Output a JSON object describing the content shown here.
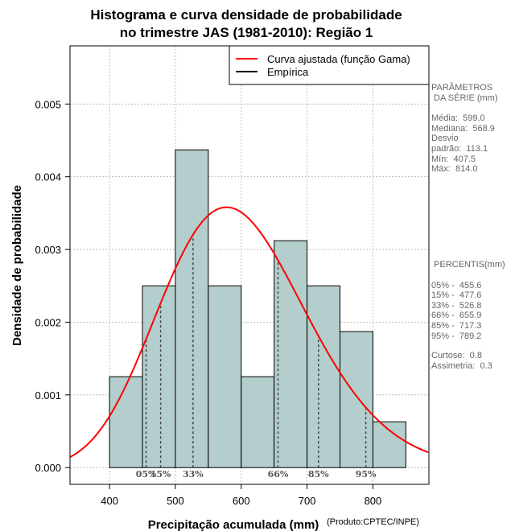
{
  "chart_data": {
    "type": "bar",
    "title": [
      "Histograma e curva densidade de probabilidade",
      "no trimestre JAS (1981-2010): Região 1"
    ],
    "xlabel": "Precipitação acumulada (mm)",
    "ylabel": "Densidade de probabilidade",
    "credit": "(Produto:CPTEC/INPE)",
    "xlim": [
      340,
      885
    ],
    "ylim": [
      -0.00023,
      0.0058
    ],
    "xticks": [
      400,
      500,
      600,
      700,
      800
    ],
    "xtick_labels": [
      "400",
      "500",
      "600",
      "700",
      "800"
    ],
    "yticks": [
      0,
      0.001,
      0.002,
      0.003,
      0.004,
      0.005
    ],
    "ytick_labels": [
      "0.000",
      "0.001",
      "0.002",
      "0.003",
      "0.004",
      "0.005"
    ],
    "grid": true,
    "bin_edges": [
      400,
      450,
      500,
      550,
      600,
      650,
      700,
      750,
      800,
      850
    ],
    "values": [
      0.00125,
      0.0025,
      0.00437,
      0.0025,
      0.00125,
      0.00312,
      0.0025,
      0.00187,
      0.00063
    ],
    "bar_color": "#b4cdcd",
    "curve": {
      "name": "Curva ajustada (função Gama)",
      "color": "#ff0000",
      "distribution": "gamma",
      "mean": 599.0,
      "sd": 113.1
    },
    "empirical": {
      "name": "Empírica",
      "color": "#000000"
    },
    "legend_position": "top-right",
    "percentiles": [
      {
        "label": "05%",
        "value": 455.6
      },
      {
        "label": "15%",
        "value": 477.6
      },
      {
        "label": "33%",
        "value": 526.8
      },
      {
        "label": "66%",
        "value": 655.9
      },
      {
        "label": "85%",
        "value": 717.3
      },
      {
        "label": "95%",
        "value": 789.2
      }
    ]
  },
  "side_panel": {
    "params_title": [
      "PARÂMETROS",
      " DA SÉRIE (mm)"
    ],
    "params": [
      "Média:  599.0",
      "Mediana:  568.9",
      "Desvio",
      "padrão:  113.1",
      "Mín:  407.5",
      "Máx:  814.0"
    ],
    "percentis_title": " PERCENTIS(mm)",
    "percentis": [
      "05% -  455.6",
      "15% -  477.6",
      "33% -  526.8",
      "66% -  655.9",
      "85% -  717.3",
      "95% -  789.2"
    ],
    "stats": [
      "Curtose:  0.8",
      "Assimetria:  0.3"
    ]
  }
}
